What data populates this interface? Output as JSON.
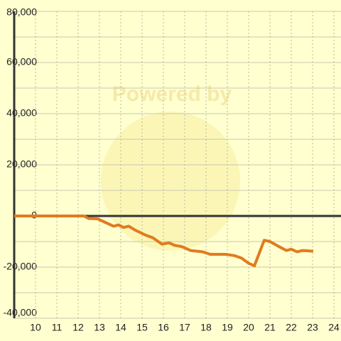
{
  "chart_data": {
    "type": "line",
    "watermark": "Powered by",
    "x": [
      9,
      12,
      12.27,
      12.5,
      12.9,
      13.27,
      13.67,
      13.9,
      14.13,
      14.37,
      14.67,
      15.17,
      15.5,
      15.93,
      16.27,
      16.53,
      16.87,
      17.27,
      17.83,
      18.2,
      18.93,
      19.33,
      19.67,
      20,
      20.27,
      20.73,
      21,
      21.43,
      21.77,
      22,
      22.27,
      22.53,
      23.03
    ],
    "series": [
      {
        "color": "#e07b20",
        "values": [
          0,
          0,
          0,
          -1000,
          -1100,
          -2500,
          -4000,
          -3500,
          -4500,
          -4000,
          -5500,
          -7500,
          -8500,
          -11000,
          -10500,
          -11500,
          -12000,
          -13500,
          -14000,
          -15000,
          -15000,
          -15500,
          -16500,
          -18500,
          -19500,
          -9500,
          -10000,
          -12000,
          -13500,
          -13000,
          -14000,
          -13500,
          -13800
        ]
      }
    ],
    "xlim": [
      9,
      24.333
    ],
    "xticks": [
      10,
      11,
      12,
      13,
      14,
      15,
      16,
      17,
      18,
      19,
      20,
      21,
      22,
      23,
      24
    ],
    "ylim": [
      -40000,
      80000
    ],
    "yticks": [
      {
        "value": -40000,
        "label": "-40,000"
      },
      {
        "value": -20000,
        "label": "-20,000"
      },
      0,
      {
        "value": 20000,
        "label": "20,000"
      },
      {
        "value": 40000,
        "label": "40,000"
      },
      {
        "value": 60000,
        "label": "60,000"
      },
      {
        "value": 80000,
        "label": "80,000"
      }
    ],
    "grid": true
  }
}
